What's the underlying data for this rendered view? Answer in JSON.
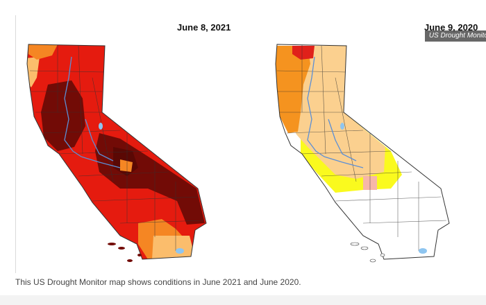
{
  "maps": [
    {
      "date": "June 8, 2021",
      "fills": {
        "base": "#e51b0f",
        "exceptional": "#720b06",
        "severe": "#f58623",
        "moderate": "#fbbd6c",
        "outline": "#333333",
        "river": "#5b8fd6"
      }
    },
    {
      "date": "June 9, 2020",
      "fills": {
        "base": "#ffffff",
        "abnormal": "#fafa1e",
        "moderate": "#fbd08f",
        "severe": "#f5931f",
        "extreme": "#e0211a",
        "pink": "#f7b7a8",
        "outline": "#333333",
        "river": "#5b8fd6"
      }
    }
  ],
  "badge": "US Drought Monitor",
  "caption": "This US Drought Monitor map shows conditions in June 2021 and June 2020."
}
